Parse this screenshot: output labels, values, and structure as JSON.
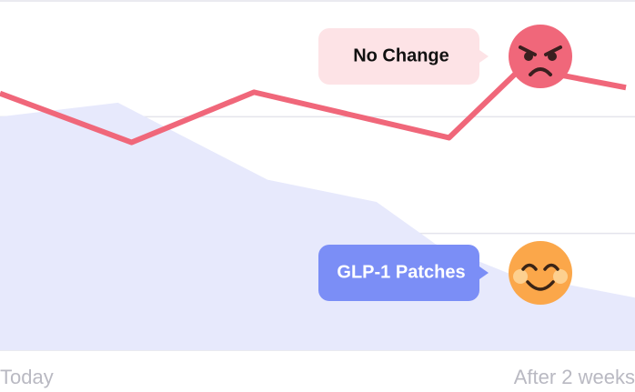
{
  "chart_data": {
    "type": "line",
    "xlim": [
      0,
      14
    ],
    "xticks": [
      {
        "value": 0,
        "label": "Today"
      },
      {
        "value": 14,
        "label": "After 2 weeks"
      }
    ],
    "ylim": [
      0,
      3
    ],
    "yticks": [
      0,
      1,
      2,
      3
    ],
    "grid": true,
    "series": [
      {
        "name": "No Change",
        "color": "#f0677a",
        "kind": "line",
        "x": [
          0,
          2.9,
          5.6,
          9.9,
          11.5,
          13.8
        ],
        "values": [
          2.2,
          1.78,
          2.21,
          1.82,
          2.42,
          2.25
        ]
      },
      {
        "name": "GLP-1 Patches",
        "color": "#e7e9fc",
        "kind": "area",
        "x": [
          0,
          2.6,
          5.9,
          8.3,
          9.6,
          11.2,
          14
        ],
        "values": [
          2.0,
          2.12,
          1.46,
          1.27,
          0.91,
          0.66,
          0.45
        ]
      }
    ]
  }
}
